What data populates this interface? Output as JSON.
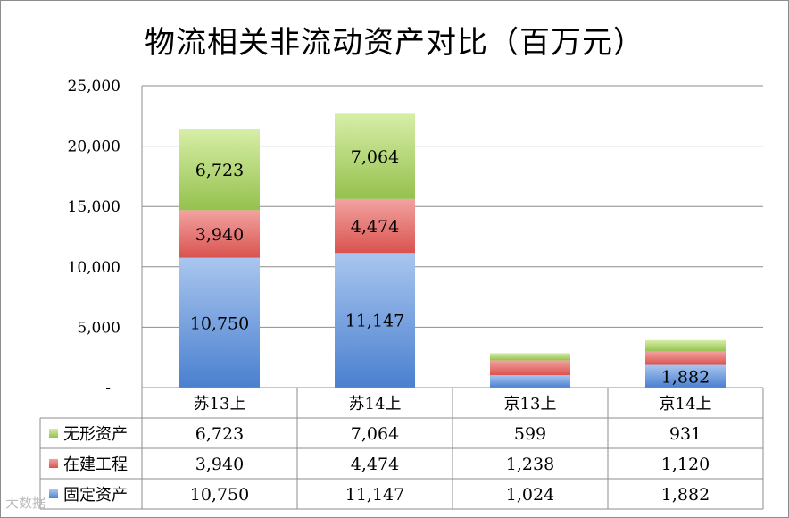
{
  "title": "物流相关非流动资产对比（百万元）",
  "watermark": "大数据",
  "chart_data": {
    "type": "bar",
    "stacked": true,
    "categories": [
      "苏13上",
      "苏14上",
      "京13上",
      "京14上"
    ],
    "ylim": [
      0,
      25000
    ],
    "yticks": [
      "-",
      "5,000",
      "10,000",
      "15,000",
      "20,000",
      "25,000"
    ],
    "grid": true,
    "legend": "data-table",
    "series": [
      {
        "name": "固定资产",
        "color": "#4f81bd",
        "values": [
          10750,
          11147,
          1024,
          1882
        ],
        "labels": [
          "10,750",
          "11,147",
          "1,024",
          "1,882"
        ],
        "bar_labels": [
          true,
          true,
          false,
          true
        ]
      },
      {
        "name": "在建工程",
        "color": "#c0504d",
        "values": [
          3940,
          4474,
          1238,
          1120
        ],
        "labels": [
          "3,940",
          "4,474",
          "1,238",
          "1,120"
        ],
        "bar_labels": [
          true,
          true,
          false,
          false
        ]
      },
      {
        "name": "无形资产",
        "color": "#9bbb59",
        "values": [
          6723,
          7064,
          599,
          931
        ],
        "labels": [
          "6,723",
          "7,064",
          "599",
          "931"
        ],
        "bar_labels": [
          true,
          true,
          false,
          false
        ]
      }
    ],
    "table_rows": [
      "无形资产",
      "在建工程",
      "固定资产"
    ]
  }
}
